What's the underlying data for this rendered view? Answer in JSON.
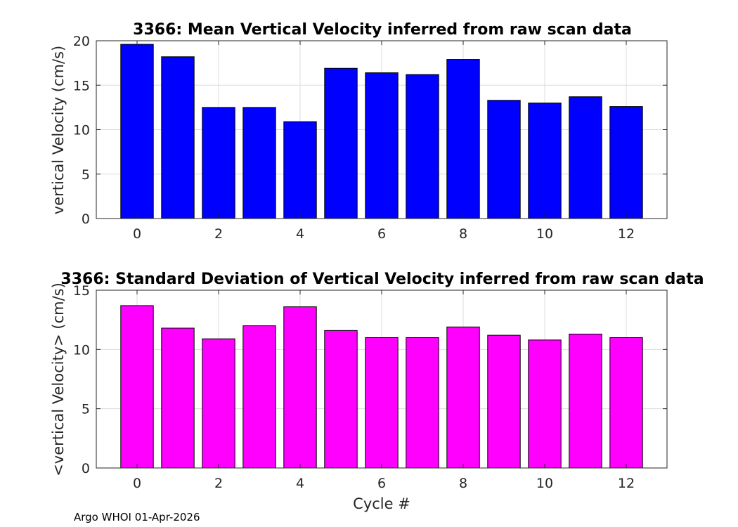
{
  "chart_data": [
    {
      "type": "bar",
      "title": "3366: Mean Vertical Velocity inferred from raw scan data",
      "xlabel": "",
      "ylabel": "vertical Velocity (cm/s)",
      "x": [
        0,
        1,
        2,
        3,
        4,
        5,
        6,
        7,
        8,
        9,
        10,
        11,
        12
      ],
      "values": [
        19.6,
        18.2,
        12.5,
        12.5,
        10.9,
        16.9,
        16.4,
        16.2,
        17.9,
        13.3,
        13.0,
        13.7,
        12.6
      ],
      "xlim": [
        -1,
        13
      ],
      "ylim": [
        0,
        20
      ],
      "xticks": [
        0,
        2,
        4,
        6,
        8,
        10,
        12
      ],
      "yticks": [
        0,
        5,
        10,
        15,
        20
      ],
      "color": "#0000ff",
      "grid": true
    },
    {
      "type": "bar",
      "title": "3366: Standard Deviation of Vertical Velocity inferred from raw scan data",
      "xlabel": "Cycle #",
      "ylabel": "<vertical Velocity> (cm/s)",
      "x": [
        0,
        1,
        2,
        3,
        4,
        5,
        6,
        7,
        8,
        9,
        10,
        11,
        12
      ],
      "values": [
        13.7,
        11.8,
        10.9,
        12.0,
        13.6,
        11.6,
        11.0,
        11.0,
        11.9,
        11.2,
        10.8,
        11.3,
        11.0
      ],
      "xlim": [
        -1,
        13
      ],
      "ylim": [
        0,
        15
      ],
      "xticks": [
        0,
        2,
        4,
        6,
        8,
        10,
        12
      ],
      "yticks": [
        0,
        5,
        10,
        15
      ],
      "color": "#ff00ff",
      "grid": true
    }
  ],
  "footer": "Argo WHOI 01-Apr-2026"
}
